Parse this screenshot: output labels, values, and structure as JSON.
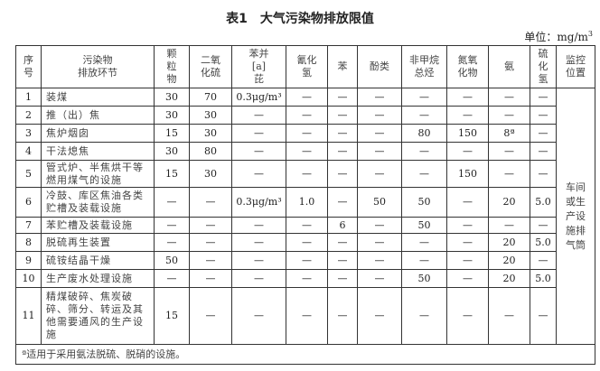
{
  "title": "表1　大气污染物排放限值",
  "unit": {
    "label": "单位：mg/m",
    "sup": "3"
  },
  "headers": [
    "序号",
    "污染物排放环节",
    "颗粒物",
    "二氧化硫",
    "苯并[a]芘",
    "氰化氢",
    "苯",
    "酚类",
    "非甲烷总烃",
    "氮氧化物",
    "氨",
    "硫化氢",
    "监控位置"
  ],
  "header_lines": {
    "seq": [
      "序",
      "号"
    ],
    "source": [
      "污染物",
      "排放环节"
    ],
    "pm": [
      "颗",
      "粒",
      "物"
    ],
    "so2": [
      "二氧",
      "化硫"
    ],
    "bap": [
      "苯并",
      "[a]芘"
    ],
    "hcn": [
      "氰化",
      "氢"
    ],
    "benzene": [
      "苯"
    ],
    "phenol": [
      "酚类"
    ],
    "nmhc": [
      "非甲烷",
      "总烃"
    ],
    "nox": [
      "氮氧",
      "化物"
    ],
    "nh3": [
      "氨"
    ],
    "h2s": [
      "硫",
      "化",
      "氢"
    ],
    "monitor": [
      "监控",
      "位置"
    ]
  },
  "rows": [
    {
      "no": "1",
      "source": "装煤",
      "values": [
        "30",
        "70",
        "0.3μg/m³",
        "—",
        "—",
        "—",
        "—",
        "—",
        "—",
        "—"
      ]
    },
    {
      "no": "2",
      "source": "推（出）焦",
      "values": [
        "30",
        "30",
        "—",
        "—",
        "—",
        "—",
        "—",
        "—",
        "—",
        "—"
      ]
    },
    {
      "no": "3",
      "source": "焦炉烟囱",
      "values": [
        "15",
        "30",
        "—",
        "—",
        "—",
        "—",
        "80",
        "150",
        "8ª",
        "—"
      ]
    },
    {
      "no": "4",
      "source": "干法熄焦",
      "values": [
        "30",
        "80",
        "—",
        "—",
        "—",
        "—",
        "—",
        "—",
        "—",
        "—"
      ]
    },
    {
      "no": "5",
      "source": "管式炉、半焦烘干等燃用煤气的设施",
      "values": [
        "15",
        "30",
        "—",
        "—",
        "—",
        "—",
        "—",
        "150",
        "—",
        "—"
      ]
    },
    {
      "no": "6",
      "source": "冷鼓、库区焦油各类贮槽及装载设施",
      "values": [
        "—",
        "—",
        "0.3μg/m³",
        "1.0",
        "—",
        "50",
        "50",
        "—",
        "20",
        "5.0"
      ]
    },
    {
      "no": "7",
      "source": "苯贮槽及装载设施",
      "values": [
        "—",
        "—",
        "—",
        "—",
        "6",
        "—",
        "50",
        "—",
        "—",
        "—"
      ]
    },
    {
      "no": "8",
      "source": "脱硫再生装置",
      "values": [
        "—",
        "—",
        "—",
        "—",
        "—",
        "—",
        "—",
        "—",
        "20",
        "5.0"
      ]
    },
    {
      "no": "9",
      "source": "硫铵结晶干燥",
      "values": [
        "50",
        "—",
        "—",
        "—",
        "—",
        "—",
        "—",
        "—",
        "20",
        "—"
      ]
    },
    {
      "no": "10",
      "source": "生产废水处理设施",
      "values": [
        "—",
        "—",
        "—",
        "—",
        "—",
        "—",
        "50",
        "—",
        "20",
        "5.0"
      ]
    },
    {
      "no": "11",
      "source": "精煤破碎、焦炭破碎、筛分、转运及其他需要通风的生产设施",
      "values": [
        "15",
        "—",
        "—",
        "—",
        "—",
        "—",
        "—",
        "—",
        "—",
        "—"
      ]
    }
  ],
  "monitor_location": "车间或生产设施排气筒",
  "footnote": "ª适用于采用氨法脱硫、脱硝的设施。"
}
